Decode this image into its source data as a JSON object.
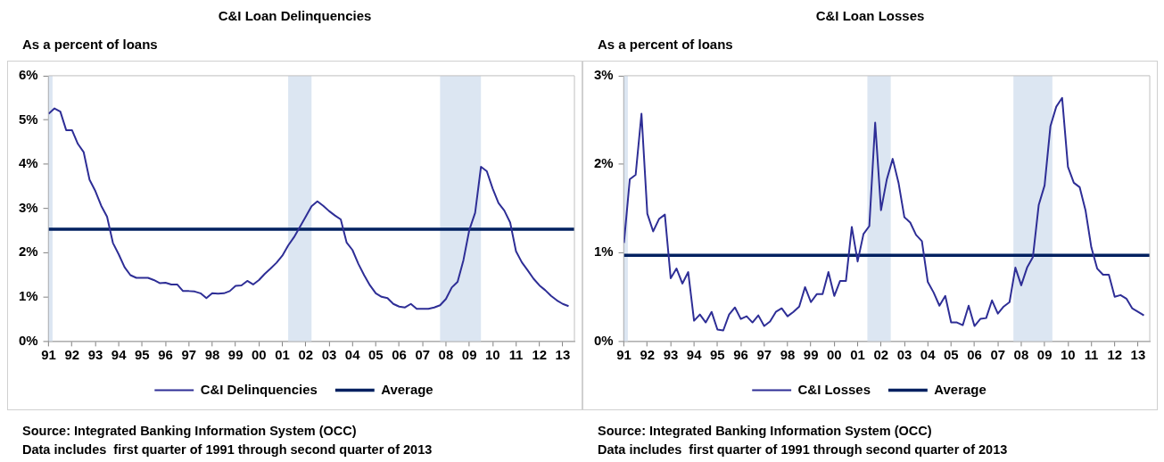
{
  "chart_data": [
    {
      "type": "line",
      "title": "C&I Loan Delinquencies",
      "subtitle": "As a percent of loans",
      "x": [
        "1991-01",
        "1991-04",
        "1991-07",
        "1991-10",
        "1992-01",
        "1992-04",
        "1992-07",
        "1992-10",
        "1993-01",
        "1993-04",
        "1993-07",
        "1993-10",
        "1994-01",
        "1994-04",
        "1994-07",
        "1994-10",
        "1995-01",
        "1995-04",
        "1995-07",
        "1995-10",
        "1996-01",
        "1996-04",
        "1996-07",
        "1996-10",
        "1997-01",
        "1997-04",
        "1997-07",
        "1997-10",
        "1998-01",
        "1998-04",
        "1998-07",
        "1998-10",
        "1999-01",
        "1999-04",
        "1999-07",
        "1999-10",
        "2000-01",
        "2000-04",
        "2000-07",
        "2000-10",
        "2001-01",
        "2001-04",
        "2001-07",
        "2001-10",
        "2002-01",
        "2002-04",
        "2002-07",
        "2002-10",
        "2003-01",
        "2003-04",
        "2003-07",
        "2003-10",
        "2004-01",
        "2004-04",
        "2004-07",
        "2004-10",
        "2005-01",
        "2005-04",
        "2005-07",
        "2005-10",
        "2006-01",
        "2006-04",
        "2006-07",
        "2006-10",
        "2007-01",
        "2007-04",
        "2007-07",
        "2007-10",
        "2008-01",
        "2008-04",
        "2008-07",
        "2008-10",
        "2009-01",
        "2009-04",
        "2009-07",
        "2009-10",
        "2010-01",
        "2010-04",
        "2010-07",
        "2010-10",
        "2011-01",
        "2011-04",
        "2011-07",
        "2011-10",
        "2012-01",
        "2012-04",
        "2012-07",
        "2012-10",
        "2013-01",
        "2013-04"
      ],
      "series": [
        {
          "name": "C&I Delinquencies",
          "color": "#2e2e96",
          "values": [
            5.14,
            5.26,
            5.19,
            4.77,
            4.77,
            4.46,
            4.27,
            3.65,
            3.39,
            3.06,
            2.81,
            2.22,
            1.96,
            1.67,
            1.49,
            1.43,
            1.43,
            1.43,
            1.38,
            1.31,
            1.32,
            1.28,
            1.28,
            1.13,
            1.13,
            1.12,
            1.08,
            0.97,
            1.08,
            1.07,
            1.08,
            1.13,
            1.25,
            1.26,
            1.36,
            1.28,
            1.38,
            1.52,
            1.64,
            1.77,
            1.93,
            2.16,
            2.35,
            2.58,
            2.81,
            3.05,
            3.16,
            3.06,
            2.94,
            2.84,
            2.75,
            2.23,
            2.06,
            1.75,
            1.49,
            1.26,
            1.08,
            1.0,
            0.97,
            0.84,
            0.78,
            0.76,
            0.84,
            0.73,
            0.73,
            0.73,
            0.76,
            0.81,
            0.95,
            1.21,
            1.34,
            1.83,
            2.51,
            2.9,
            3.94,
            3.84,
            3.45,
            3.12,
            2.95,
            2.68,
            2.03,
            1.78,
            1.6,
            1.41,
            1.26,
            1.15,
            1.02,
            0.92,
            0.84,
            0.79
          ]
        }
      ],
      "ref_lines": [
        {
          "axis": "y",
          "value": 2.53,
          "label": "Average",
          "color": "#002060"
        }
      ],
      "bands": [
        {
          "axis": "x",
          "from": "1991-01",
          "to": "1991-03",
          "color": "#dce6f2"
        },
        {
          "axis": "x",
          "from": "2001-04",
          "to": "2002-04",
          "color": "#dce6f2"
        },
        {
          "axis": "x",
          "from": "2007-10",
          "to": "2009-07",
          "color": "#dce6f2"
        }
      ],
      "xlim": [
        "1991-01",
        "2013-07"
      ],
      "xticks": [
        {
          "value": "1991",
          "label": "91"
        },
        {
          "value": "1992",
          "label": "92"
        },
        {
          "value": "1993",
          "label": "93"
        },
        {
          "value": "1994",
          "label": "94"
        },
        {
          "value": "1995",
          "label": "95"
        },
        {
          "value": "1996",
          "label": "96"
        },
        {
          "value": "1997",
          "label": "97"
        },
        {
          "value": "1998",
          "label": "98"
        },
        {
          "value": "1999",
          "label": "99"
        },
        {
          "value": "2000",
          "label": "00"
        },
        {
          "value": "2001",
          "label": "01"
        },
        {
          "value": "2002",
          "label": "02"
        },
        {
          "value": "2003",
          "label": "03"
        },
        {
          "value": "2004",
          "label": "04"
        },
        {
          "value": "2005",
          "label": "05"
        },
        {
          "value": "2006",
          "label": "06"
        },
        {
          "value": "2007",
          "label": "07"
        },
        {
          "value": "2008",
          "label": "08"
        },
        {
          "value": "2009",
          "label": "09"
        },
        {
          "value": "2010",
          "label": "10"
        },
        {
          "value": "2011",
          "label": "11"
        },
        {
          "value": "2012",
          "label": "12"
        },
        {
          "value": "2013",
          "label": "13"
        }
      ],
      "ylim": [
        0,
        6
      ],
      "yticks": [
        {
          "value": 0,
          "label": "0%"
        },
        {
          "value": 1,
          "label": "1%"
        },
        {
          "value": 2,
          "label": "2%"
        },
        {
          "value": 3,
          "label": "3%"
        },
        {
          "value": 4,
          "label": "4%"
        },
        {
          "value": 5,
          "label": "5%"
        },
        {
          "value": 6,
          "label": "6%"
        }
      ],
      "legend": "bottom",
      "annotations": [
        "Source: Integrated Banking Information System (OCC)",
        "Data includes  first quarter of 1991 through second quarter of 2013"
      ]
    },
    {
      "type": "line",
      "title": "C&I Loan Losses",
      "subtitle": "As a percent of loans",
      "x": [
        "1991-01",
        "1991-04",
        "1991-07",
        "1991-10",
        "1992-01",
        "1992-04",
        "1992-07",
        "1992-10",
        "1993-01",
        "1993-04",
        "1993-07",
        "1993-10",
        "1994-01",
        "1994-04",
        "1994-07",
        "1994-10",
        "1995-01",
        "1995-04",
        "1995-07",
        "1995-10",
        "1996-01",
        "1996-04",
        "1996-07",
        "1996-10",
        "1997-01",
        "1997-04",
        "1997-07",
        "1997-10",
        "1998-01",
        "1998-04",
        "1998-07",
        "1998-10",
        "1999-01",
        "1999-04",
        "1999-07",
        "1999-10",
        "2000-01",
        "2000-04",
        "2000-07",
        "2000-10",
        "2001-01",
        "2001-04",
        "2001-07",
        "2001-10",
        "2002-01",
        "2002-04",
        "2002-07",
        "2002-10",
        "2003-01",
        "2003-04",
        "2003-07",
        "2003-10",
        "2004-01",
        "2004-04",
        "2004-07",
        "2004-10",
        "2005-01",
        "2005-04",
        "2005-07",
        "2005-10",
        "2006-01",
        "2006-04",
        "2006-07",
        "2006-10",
        "2007-01",
        "2007-04",
        "2007-07",
        "2007-10",
        "2008-01",
        "2008-04",
        "2008-07",
        "2008-10",
        "2009-01",
        "2009-04",
        "2009-07",
        "2009-10",
        "2010-01",
        "2010-04",
        "2010-07",
        "2010-10",
        "2011-01",
        "2011-04",
        "2011-07",
        "2011-10",
        "2012-01",
        "2012-04",
        "2012-07",
        "2012-10",
        "2013-01",
        "2013-04"
      ],
      "series": [
        {
          "name": "C&I Losses",
          "color": "#2e2e96",
          "values": [
            1.11,
            1.83,
            1.88,
            2.57,
            1.44,
            1.24,
            1.38,
            1.43,
            0.71,
            0.82,
            0.65,
            0.78,
            0.23,
            0.3,
            0.21,
            0.33,
            0.13,
            0.12,
            0.3,
            0.38,
            0.25,
            0.28,
            0.21,
            0.29,
            0.17,
            0.22,
            0.33,
            0.37,
            0.28,
            0.33,
            0.39,
            0.61,
            0.44,
            0.53,
            0.53,
            0.78,
            0.51,
            0.68,
            0.68,
            1.29,
            0.9,
            1.21,
            1.3,
            2.47,
            1.48,
            1.83,
            2.06,
            1.79,
            1.4,
            1.34,
            1.2,
            1.13,
            0.67,
            0.55,
            0.4,
            0.51,
            0.21,
            0.21,
            0.18,
            0.4,
            0.17,
            0.25,
            0.26,
            0.46,
            0.31,
            0.39,
            0.44,
            0.83,
            0.63,
            0.83,
            0.95,
            1.54,
            1.76,
            2.43,
            2.65,
            2.75,
            1.97,
            1.79,
            1.74,
            1.48,
            1.06,
            0.82,
            0.75,
            0.75,
            0.5,
            0.52,
            0.48,
            0.37,
            0.33,
            0.29
          ]
        }
      ],
      "ref_lines": [
        {
          "axis": "y",
          "value": 0.97,
          "label": "Average",
          "color": "#002060"
        }
      ],
      "bands": [
        {
          "axis": "x",
          "from": "1991-01",
          "to": "1991-03",
          "color": "#dce6f2"
        },
        {
          "axis": "x",
          "from": "2001-06",
          "to": "2002-06",
          "color": "#dce6f2"
        },
        {
          "axis": "x",
          "from": "2007-09",
          "to": "2009-05",
          "color": "#dce6f2"
        }
      ],
      "xlim": [
        "1991-01",
        "2013-07"
      ],
      "xticks": [
        {
          "value": "1991",
          "label": "91"
        },
        {
          "value": "1992",
          "label": "92"
        },
        {
          "value": "1993",
          "label": "93"
        },
        {
          "value": "1994",
          "label": "94"
        },
        {
          "value": "1995",
          "label": "95"
        },
        {
          "value": "1996",
          "label": "96"
        },
        {
          "value": "1997",
          "label": "97"
        },
        {
          "value": "1998",
          "label": "98"
        },
        {
          "value": "1999",
          "label": "99"
        },
        {
          "value": "2000",
          "label": "00"
        },
        {
          "value": "2001",
          "label": "01"
        },
        {
          "value": "2002",
          "label": "02"
        },
        {
          "value": "2003",
          "label": "03"
        },
        {
          "value": "2004",
          "label": "04"
        },
        {
          "value": "2005",
          "label": "05"
        },
        {
          "value": "2006",
          "label": "06"
        },
        {
          "value": "2007",
          "label": "07"
        },
        {
          "value": "2008",
          "label": "08"
        },
        {
          "value": "2009",
          "label": "09"
        },
        {
          "value": "2010",
          "label": "10"
        },
        {
          "value": "2011",
          "label": "11"
        },
        {
          "value": "2012",
          "label": "12"
        },
        {
          "value": "2013",
          "label": "13"
        }
      ],
      "ylim": [
        0,
        3
      ],
      "yticks": [
        {
          "value": 0,
          "label": "0%"
        },
        {
          "value": 1,
          "label": "1%"
        },
        {
          "value": 2,
          "label": "2%"
        },
        {
          "value": 3,
          "label": "3%"
        }
      ],
      "legend": "bottom",
      "annotations": [
        "Source: Integrated Banking Information System (OCC)",
        "Data includes  first quarter of 1991 through second quarter of 2013"
      ]
    }
  ]
}
